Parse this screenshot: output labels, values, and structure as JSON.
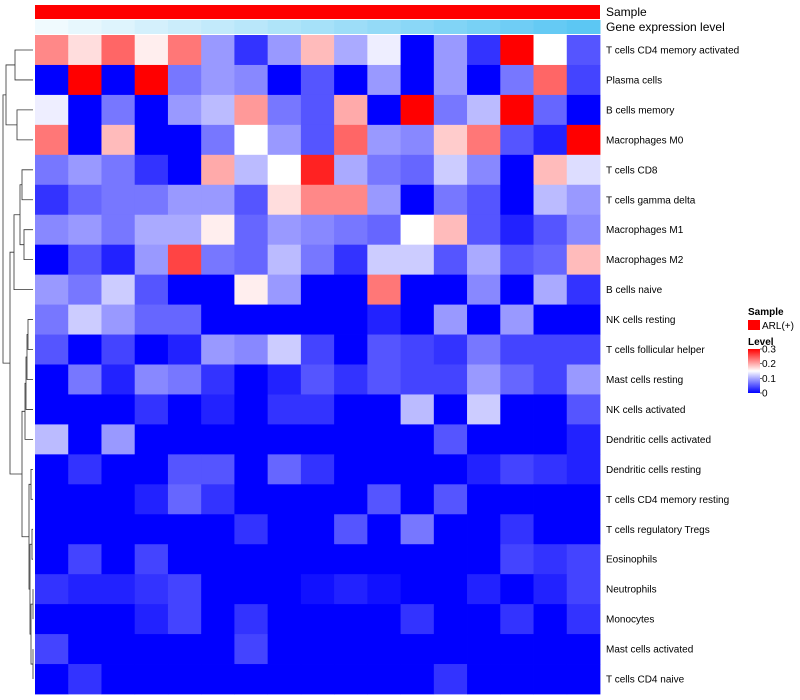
{
  "chart_data": {
    "type": "heatmap",
    "annotations": [
      {
        "label": "Sample",
        "kind": "categorical",
        "color": "#ff0000"
      },
      {
        "label": "Gene expression level",
        "kind": "gradient",
        "color_low": "#f0fafe",
        "color_high": "#56c5f3"
      }
    ],
    "rows": [
      "T cells CD4 memory activated",
      "Plasma cells",
      "B cells memory",
      "Macrophages M0",
      "T cells CD8",
      "T cells gamma delta",
      "Macrophages M1",
      "Macrophages M2",
      "B cells naive",
      "NK cells resting",
      "T cells follicular helper",
      "Mast cells resting",
      "NK cells activated",
      "Dendritic cells activated",
      "Dendritic cells resting",
      "T cells CD4 memory resting",
      "T cells regulatory  Tregs",
      "Eosinophils",
      "Neutrophils",
      "Monocytes",
      "Mast cells activated",
      "T cells CD4 naive"
    ],
    "n_columns": 17,
    "values": [
      [
        0.22,
        0.17,
        0.24,
        0.16,
        0.23,
        0.09,
        0.03,
        0.09,
        0.19,
        0.1,
        0.14,
        0.0,
        0.09,
        0.03,
        0.31,
        0.15,
        0.05
      ],
      [
        0.0,
        0.3,
        0.0,
        0.31,
        0.07,
        0.09,
        0.08,
        0.0,
        0.05,
        0.0,
        0.09,
        0.0,
        0.09,
        0.0,
        0.07,
        0.24,
        0.04
      ],
      [
        0.14,
        0.0,
        0.07,
        0.0,
        0.09,
        0.11,
        0.21,
        0.07,
        0.05,
        0.2,
        0.0,
        0.31,
        0.07,
        0.11,
        0.31,
        0.06,
        0.0
      ],
      [
        0.23,
        0.0,
        0.19,
        0.0,
        0.0,
        0.07,
        0.15,
        0.09,
        0.05,
        0.24,
        0.09,
        0.08,
        0.18,
        0.23,
        0.05,
        0.02,
        0.31
      ],
      [
        0.07,
        0.09,
        0.07,
        0.03,
        0.0,
        0.2,
        0.11,
        0.15,
        0.28,
        0.1,
        0.07,
        0.06,
        0.12,
        0.08,
        0.0,
        0.19,
        0.13
      ],
      [
        0.03,
        0.06,
        0.07,
        0.07,
        0.09,
        0.09,
        0.05,
        0.17,
        0.22,
        0.22,
        0.09,
        0.0,
        0.07,
        0.05,
        0.0,
        0.11,
        0.09
      ],
      [
        0.08,
        0.09,
        0.07,
        0.1,
        0.1,
        0.16,
        0.06,
        0.09,
        0.08,
        0.07,
        0.06,
        0.15,
        0.19,
        0.05,
        0.02,
        0.05,
        0.08
      ],
      [
        0.0,
        0.05,
        0.02,
        0.09,
        0.26,
        0.07,
        0.06,
        0.11,
        0.07,
        0.03,
        0.12,
        0.12,
        0.05,
        0.1,
        0.05,
        0.06,
        0.19
      ],
      [
        0.09,
        0.07,
        0.12,
        0.05,
        0.0,
        0.0,
        0.16,
        0.09,
        0.0,
        0.0,
        0.23,
        0.0,
        0.0,
        0.08,
        0.0,
        0.1,
        0.03
      ],
      [
        0.07,
        0.12,
        0.09,
        0.06,
        0.06,
        0.0,
        0.0,
        0.0,
        0.0,
        0.0,
        0.02,
        0.0,
        0.09,
        0.0,
        0.09,
        0.0,
        0.0
      ],
      [
        0.05,
        0.0,
        0.04,
        0.0,
        0.02,
        0.09,
        0.08,
        0.12,
        0.04,
        0.0,
        0.05,
        0.04,
        0.03,
        0.07,
        0.04,
        0.04,
        0.04
      ],
      [
        0.0,
        0.07,
        0.02,
        0.08,
        0.07,
        0.03,
        0.0,
        0.02,
        0.05,
        0.03,
        0.05,
        0.04,
        0.04,
        0.09,
        0.06,
        0.04,
        0.09
      ],
      [
        0.0,
        0.0,
        0.0,
        0.03,
        0.0,
        0.02,
        0.0,
        0.03,
        0.03,
        0.0,
        0.0,
        0.11,
        0.0,
        0.12,
        0.0,
        0.0,
        0.05
      ],
      [
        0.11,
        0.0,
        0.09,
        0.0,
        0.0,
        0.0,
        0.0,
        0.0,
        0.0,
        0.0,
        0.0,
        0.0,
        0.05,
        0.0,
        0.0,
        0.0,
        0.02
      ],
      [
        0.0,
        0.03,
        0.0,
        0.0,
        0.05,
        0.05,
        0.0,
        0.06,
        0.03,
        0.0,
        0.0,
        0.0,
        0.0,
        0.02,
        0.04,
        0.03,
        0.02
      ],
      [
        0.0,
        0.0,
        0.0,
        0.02,
        0.06,
        0.03,
        0.0,
        0.0,
        0.0,
        0.0,
        0.05,
        0.0,
        0.05,
        0.0,
        0.0,
        0.0,
        0.0
      ],
      [
        0.0,
        0.0,
        0.0,
        0.0,
        0.0,
        0.0,
        0.03,
        0.0,
        0.0,
        0.05,
        0.0,
        0.07,
        0.0,
        0.0,
        0.03,
        0.0,
        0.0
      ],
      [
        0.0,
        0.04,
        0.0,
        0.04,
        0.0,
        0.0,
        0.0,
        0.0,
        0.0,
        0.0,
        0.0,
        0.0,
        0.0,
        0.0,
        0.04,
        0.03,
        0.04
      ],
      [
        0.03,
        0.02,
        0.02,
        0.03,
        0.04,
        0.0,
        0.0,
        0.0,
        0.01,
        0.02,
        0.01,
        0.0,
        0.0,
        0.02,
        0.0,
        0.02,
        0.04
      ],
      [
        0.0,
        0.0,
        0.0,
        0.02,
        0.04,
        0.0,
        0.03,
        0.0,
        0.0,
        0.0,
        0.0,
        0.03,
        0.0,
        0.0,
        0.03,
        0.0,
        0.03
      ],
      [
        0.04,
        0.0,
        0.0,
        0.0,
        0.0,
        0.0,
        0.04,
        0.0,
        0.0,
        0.0,
        0.0,
        0.0,
        0.0,
        0.0,
        0.0,
        0.0,
        0.0
      ],
      [
        0.0,
        0.03,
        0.0,
        0.0,
        0.0,
        0.0,
        0.0,
        0.0,
        0.0,
        0.0,
        0.0,
        0.0,
        0.03,
        0.0,
        0.0,
        0.0,
        0.0
      ]
    ],
    "gene_expression_level": [
      0.0,
      0.06,
      0.12,
      0.18,
      0.24,
      0.3,
      0.36,
      0.42,
      0.48,
      0.54,
      0.6,
      0.66,
      0.72,
      0.78,
      0.84,
      0.9,
      0.96
    ],
    "color_scale": {
      "low": "#0000ff",
      "mid": "#ffffff",
      "high": "#ff0000",
      "low_value": 0,
      "mid_value": 0.15,
      "high_value": 0.3
    },
    "legend": {
      "sample_title": "Sample",
      "sample_entry": "ARL(+)",
      "level_title": "Level",
      "ticks": [
        {
          "value": 0.3,
          "label": "0.3"
        },
        {
          "value": 0.2,
          "label": "0.2"
        },
        {
          "value": 0.1,
          "label": "0.1"
        },
        {
          "value": 0,
          "label": "0"
        }
      ]
    },
    "dendrogram": "rows-left"
  }
}
